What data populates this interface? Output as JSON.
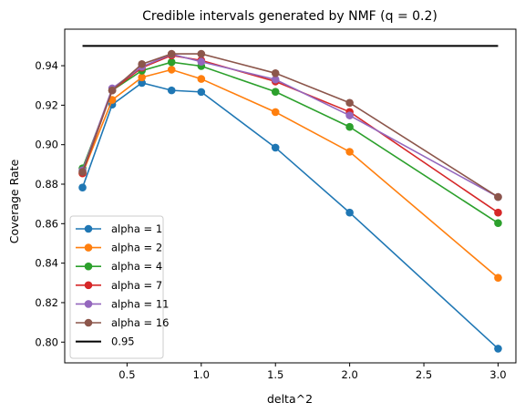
{
  "chart_data": {
    "type": "line",
    "title": "Credible intervals generated by NMF (q = 0.2)",
    "xlabel": "delta^2",
    "ylabel": "Coverage Rate",
    "xlim": [
      0.08,
      3.12
    ],
    "ylim": [
      0.7895,
      0.9585
    ],
    "xticks": [
      0.5,
      1.0,
      1.5,
      2.0,
      2.5,
      3.0
    ],
    "xtick_labels": [
      "0.5",
      "1.0",
      "1.5",
      "2.0",
      "2.5",
      "3.0"
    ],
    "yticks": [
      0.8,
      0.82,
      0.84,
      0.86,
      0.88,
      0.9,
      0.92,
      0.94
    ],
    "ytick_labels": [
      "0.80",
      "0.82",
      "0.84",
      "0.86",
      "0.88",
      "0.90",
      "0.92",
      "0.94"
    ],
    "grid": false,
    "legend_position": "lower-left",
    "x": [
      0.2,
      0.4,
      0.6,
      0.8,
      1.0,
      1.5,
      2.0,
      3.0
    ],
    "series": [
      {
        "name": "alpha = 1",
        "color": "#1f77b4",
        "values": [
          0.8783,
          0.9203,
          0.9313,
          0.9275,
          0.9267,
          0.8985,
          0.8656,
          0.7967
        ]
      },
      {
        "name": "alpha = 2",
        "color": "#ff7f0e",
        "values": [
          0.8855,
          0.9227,
          0.9341,
          0.938,
          0.9333,
          0.9165,
          0.8964,
          0.8326
        ]
      },
      {
        "name": "alpha = 4",
        "color": "#2ca02c",
        "values": [
          0.888,
          0.9275,
          0.9375,
          0.9418,
          0.9398,
          0.9268,
          0.909,
          0.8603
        ]
      },
      {
        "name": "alpha = 7",
        "color": "#d62728",
        "values": [
          0.8855,
          0.9275,
          0.939,
          0.9452,
          0.9427,
          0.932,
          0.9166,
          0.8656
        ]
      },
      {
        "name": "alpha = 11",
        "color": "#9467bd",
        "values": [
          0.887,
          0.9285,
          0.9395,
          0.9458,
          0.942,
          0.933,
          0.9148,
          0.8735
        ]
      },
      {
        "name": "alpha = 16",
        "color": "#8c564b",
        "values": [
          0.8862,
          0.9275,
          0.9408,
          0.946,
          0.946,
          0.9362,
          0.9212,
          0.8735
        ]
      }
    ],
    "reference_line": {
      "name": "0.95",
      "color": "#000000",
      "value": 0.95,
      "x_range": [
        0.2,
        3.0
      ]
    }
  }
}
